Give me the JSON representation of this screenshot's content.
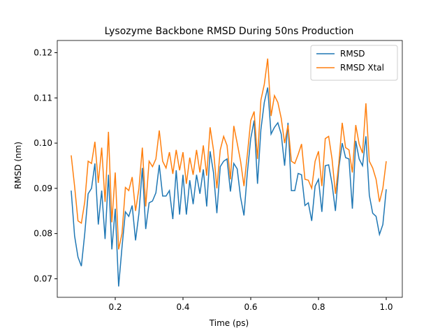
{
  "chart_data": {
    "type": "line",
    "title": "Lysozyme Backbone RMSD During 50ns Production",
    "xlabel": "Time (ps)",
    "ylabel": "RMSD (nm)",
    "x": [
      0.07,
      0.08,
      0.09,
      0.1,
      0.11,
      0.12,
      0.13,
      0.14,
      0.15,
      0.16,
      0.17,
      0.18,
      0.19,
      0.2,
      0.21,
      0.22,
      0.23,
      0.24,
      0.25,
      0.26,
      0.27,
      0.28,
      0.29,
      0.3,
      0.31,
      0.32,
      0.33,
      0.34,
      0.35,
      0.36,
      0.37,
      0.38,
      0.39,
      0.4,
      0.41,
      0.42,
      0.43,
      0.44,
      0.45,
      0.46,
      0.47,
      0.48,
      0.49,
      0.5,
      0.51,
      0.52,
      0.53,
      0.54,
      0.55,
      0.56,
      0.57,
      0.58,
      0.59,
      0.6,
      0.61,
      0.62,
      0.63,
      0.64,
      0.65,
      0.66,
      0.67,
      0.68,
      0.69,
      0.7,
      0.71,
      0.72,
      0.73,
      0.74,
      0.75,
      0.76,
      0.77,
      0.78,
      0.79,
      0.8,
      0.81,
      0.82,
      0.83,
      0.84,
      0.85,
      0.86,
      0.87,
      0.88,
      0.89,
      0.9,
      0.91,
      0.92,
      0.93,
      0.94,
      0.95,
      0.96,
      0.97,
      0.98,
      0.99,
      1.0
    ],
    "series": [
      {
        "name": "RMSD",
        "color": "#1f77b4",
        "values": [
          0.0895,
          0.0795,
          0.0748,
          0.0728,
          0.08,
          0.0888,
          0.09,
          0.0955,
          0.082,
          0.0895,
          0.0788,
          0.093,
          0.0765,
          0.0855,
          0.0683,
          0.077,
          0.0848,
          0.0838,
          0.0862,
          0.0785,
          0.0845,
          0.0945,
          0.081,
          0.0868,
          0.0872,
          0.089,
          0.0952,
          0.0883,
          0.0883,
          0.0895,
          0.0832,
          0.094,
          0.0842,
          0.093,
          0.0842,
          0.0918,
          0.0865,
          0.093,
          0.0888,
          0.0942,
          0.086,
          0.0982,
          0.0935,
          0.0845,
          0.0948,
          0.096,
          0.0965,
          0.0893,
          0.0955,
          0.0943,
          0.088,
          0.084,
          0.0935,
          0.101,
          0.105,
          0.091,
          0.103,
          0.109,
          0.1123,
          0.102,
          0.1035,
          0.1045,
          0.102,
          0.095,
          0.1045,
          0.0895,
          0.0895,
          0.0933,
          0.093,
          0.0862,
          0.0868,
          0.0828,
          0.0905,
          0.092,
          0.0848,
          0.095,
          0.0952,
          0.091,
          0.085,
          0.0945,
          0.1,
          0.0968,
          0.0965,
          0.0855,
          0.1005,
          0.0965,
          0.095,
          0.1015,
          0.0885,
          0.0845,
          0.0838,
          0.0798,
          0.082,
          0.0898
        ]
      },
      {
        "name": "RMSD Xtal",
        "color": "#ff7f0e",
        "values": [
          0.0973,
          0.0905,
          0.0828,
          0.0823,
          0.087,
          0.096,
          0.0955,
          0.1003,
          0.0912,
          0.099,
          0.087,
          0.1025,
          0.0825,
          0.0935,
          0.0765,
          0.08,
          0.0902,
          0.0895,
          0.0925,
          0.085,
          0.09,
          0.099,
          0.086,
          0.096,
          0.0948,
          0.0965,
          0.1028,
          0.096,
          0.0945,
          0.098,
          0.0932,
          0.0985,
          0.094,
          0.098,
          0.091,
          0.0968,
          0.093,
          0.0985,
          0.0935,
          0.0995,
          0.0928,
          0.1035,
          0.0985,
          0.09,
          0.0985,
          0.1015,
          0.0995,
          0.092,
          0.1038,
          0.1,
          0.096,
          0.0905,
          0.0975,
          0.105,
          0.107,
          0.0965,
          0.1095,
          0.113,
          0.1187,
          0.106,
          0.1105,
          0.109,
          0.1055,
          0.1,
          0.104,
          0.096,
          0.0955,
          0.0975,
          0.0998,
          0.092,
          0.0918,
          0.09,
          0.096,
          0.0982,
          0.0905,
          0.101,
          0.1015,
          0.0965,
          0.0888,
          0.0955,
          0.1045,
          0.099,
          0.0985,
          0.0935,
          0.104,
          0.0998,
          0.0978,
          0.1088,
          0.096,
          0.0945,
          0.092,
          0.087,
          0.09,
          0.096
        ]
      }
    ],
    "xlim": [
      0.0289,
      1.0474
    ],
    "ylim": [
      0.0659,
      0.1227
    ],
    "xticks": [
      0.2,
      0.4,
      0.6,
      0.8,
      {
        "value": 1.0,
        "label": "1.0"
      }
    ],
    "yticks": [
      0.07,
      0.08,
      0.09,
      {
        "value": 0.1,
        "label": "0.10"
      },
      0.11,
      0.12
    ],
    "grid": false,
    "legend": "upper right"
  }
}
